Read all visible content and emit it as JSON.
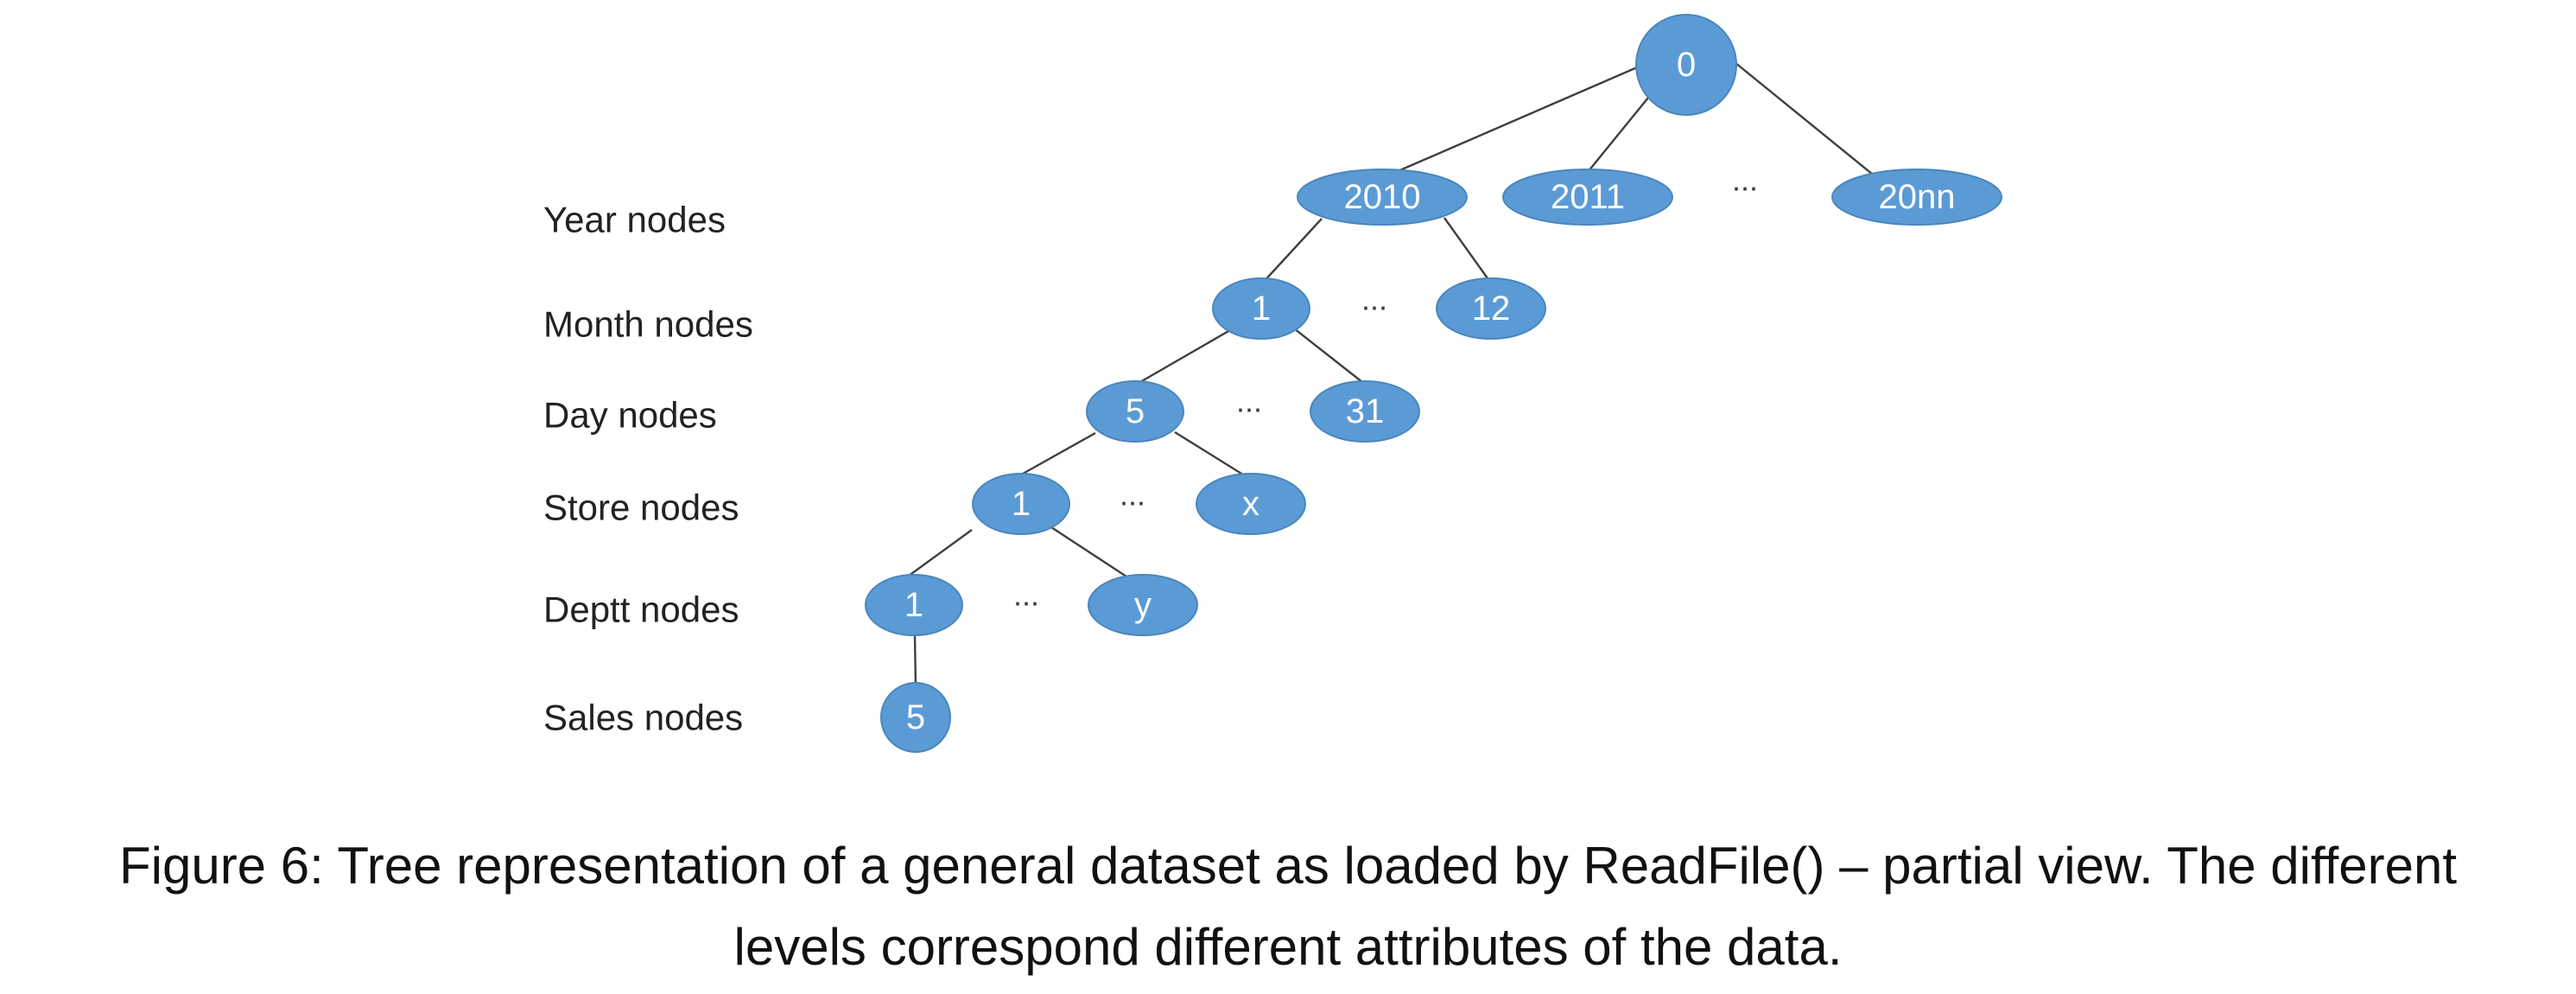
{
  "level_labels": {
    "year": "Year nodes",
    "month": "Month nodes",
    "day": "Day nodes",
    "store": "Store nodes",
    "deptt": "Deptt nodes",
    "sales": "Sales nodes"
  },
  "nodes": {
    "root": "0",
    "year_2010": "2010",
    "year_2011": "2011",
    "year_20nn": "20nn",
    "month_1": "1",
    "month_12": "12",
    "day_5": "5",
    "day_31": "31",
    "store_1": "1",
    "store_x": "x",
    "deptt_1": "1",
    "deptt_y": "y",
    "sales_5": "5"
  },
  "ellipsis": "...",
  "caption": {
    "line1": "Figure 6: Tree representation of a general dataset as loaded by ReadFile() – partial view. The different",
    "line2": "levels correspond different attributes of the data."
  },
  "colors": {
    "node_fill": "#5b9bd5",
    "node_text": "#ffffff",
    "edge": "#3f3f3f"
  }
}
